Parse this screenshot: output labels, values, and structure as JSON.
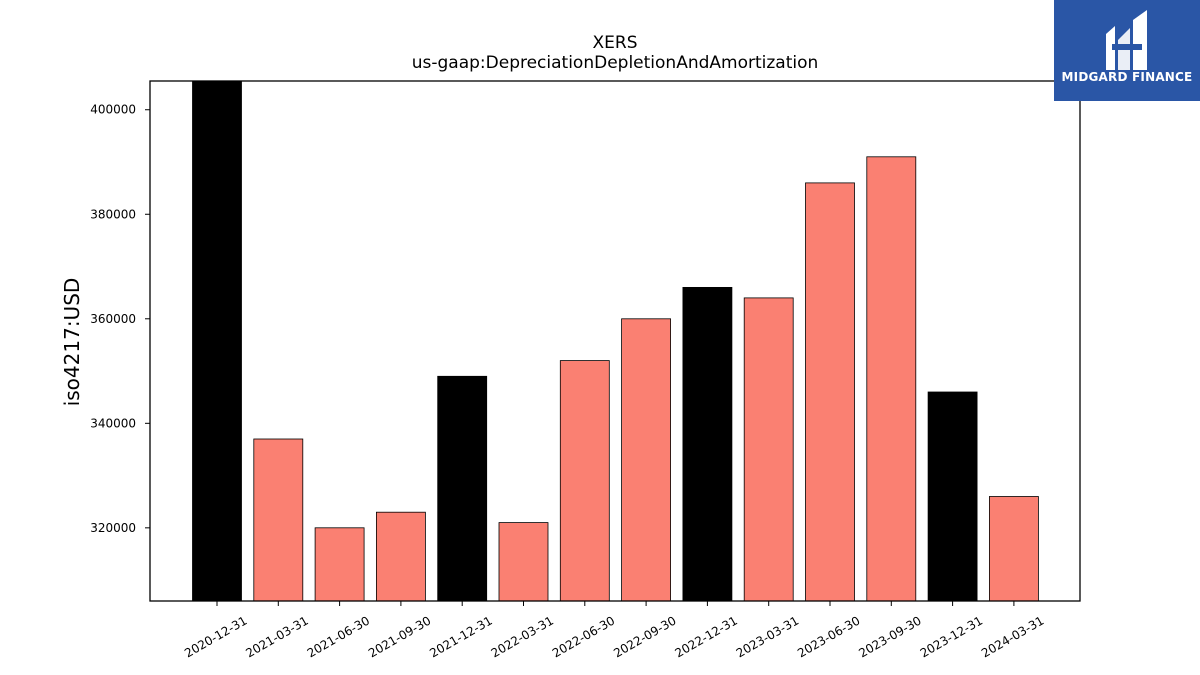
{
  "chart_data": {
    "type": "bar",
    "title": "XERS",
    "subtitle": "us-gaap:DepreciationDepletionAndAmortization",
    "xlabel": "",
    "ylabel": "iso4217:USD",
    "categories": [
      "2020-12-31",
      "2021-03-31",
      "2021-06-30",
      "2021-09-30",
      "2021-12-31",
      "2022-03-31",
      "2022-06-30",
      "2022-09-30",
      "2022-12-31",
      "2023-03-31",
      "2023-06-30",
      "2023-09-30",
      "2023-12-31",
      "2024-03-31"
    ],
    "values": [
      406000,
      337000,
      320000,
      323000,
      349000,
      321000,
      352000,
      360000,
      366000,
      364000,
      386000,
      391000,
      346000,
      326000
    ],
    "highlight": [
      true,
      false,
      false,
      false,
      true,
      false,
      false,
      false,
      true,
      false,
      false,
      false,
      true,
      false
    ],
    "ylim": [
      306000,
      405500
    ],
    "yticks": [
      320000,
      340000,
      360000,
      380000,
      400000
    ],
    "colors": {
      "highlight": "#000000",
      "normal": "#fa8072",
      "edge": "#000000"
    },
    "grid": false,
    "legend": "none"
  },
  "logo": {
    "text": "MIDGARD FINANCE",
    "bg": "#2a56a6"
  }
}
